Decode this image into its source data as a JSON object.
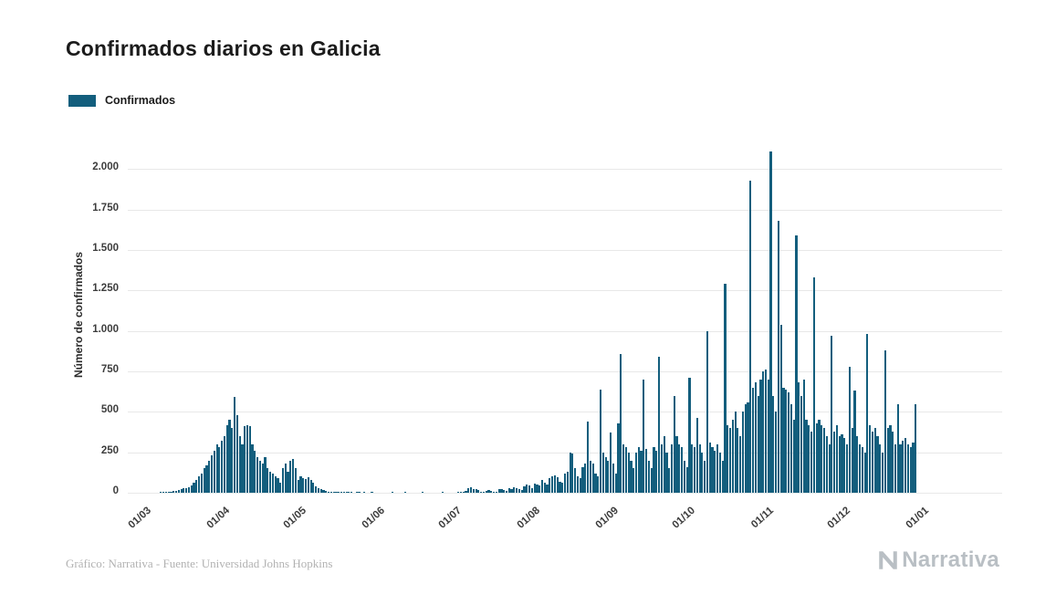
{
  "page": {
    "title": "Confirmados diarios en Galicia"
  },
  "legend": {
    "items": [
      {
        "label": "Confirmados",
        "color": "#135e7d"
      }
    ]
  },
  "footer": {
    "credit": "Gráfico: Narrativa - Fuente: Universidad Johns Hopkins",
    "brand": "Narrativa"
  },
  "chart_data": {
    "type": "bar",
    "title": "Confirmados diarios en Galicia",
    "xlabel": "",
    "ylabel": "Número de confirmados",
    "series_name": "Confirmados",
    "bar_color": "#135e7d",
    "grid": true,
    "legend_position": "top-left",
    "ylim": [
      0,
      2200
    ],
    "x_interval": "daily",
    "x_domain_days": 306,
    "y_ticks": [
      {
        "value": 0,
        "label": "0"
      },
      {
        "value": 250,
        "label": "250"
      },
      {
        "value": 500,
        "label": "500"
      },
      {
        "value": 750,
        "label": "750"
      },
      {
        "value": 1000,
        "label": "1.000"
      },
      {
        "value": 1250,
        "label": "1.250"
      },
      {
        "value": 1500,
        "label": "1.500"
      },
      {
        "value": 1750,
        "label": "1.750"
      },
      {
        "value": 2000,
        "label": "2.000"
      }
    ],
    "x_ticks": [
      {
        "day": 0,
        "label": "01/03"
      },
      {
        "day": 31,
        "label": "01/04"
      },
      {
        "day": 61,
        "label": "01/05"
      },
      {
        "day": 92,
        "label": "01/06"
      },
      {
        "day": 122,
        "label": "01/07"
      },
      {
        "day": 153,
        "label": "01/08"
      },
      {
        "day": 184,
        "label": "01/09"
      },
      {
        "day": 214,
        "label": "01/10"
      },
      {
        "day": 245,
        "label": "01/11"
      },
      {
        "day": 275,
        "label": "01/12"
      },
      {
        "day": 306,
        "label": "01/01"
      }
    ],
    "values": [
      0,
      0,
      0,
      2,
      3,
      4,
      6,
      8,
      10,
      14,
      18,
      25,
      30,
      28,
      35,
      45,
      60,
      80,
      100,
      120,
      150,
      170,
      200,
      230,
      260,
      300,
      280,
      320,
      350,
      420,
      450,
      400,
      590,
      480,
      350,
      300,
      410,
      420,
      410,
      300,
      260,
      220,
      200,
      180,
      220,
      150,
      130,
      120,
      100,
      90,
      60,
      150,
      180,
      130,
      200,
      210,
      150,
      80,
      100,
      90,
      85,
      95,
      80,
      60,
      40,
      30,
      20,
      15,
      10,
      8,
      5,
      4,
      3,
      2,
      3,
      2,
      1,
      2,
      1,
      0,
      2,
      1,
      0,
      1,
      0,
      0,
      1,
      0,
      0,
      0,
      0,
      0,
      0,
      0,
      1,
      0,
      0,
      0,
      0,
      1,
      0,
      0,
      0,
      0,
      0,
      0,
      1,
      0,
      0,
      0,
      0,
      0,
      0,
      0,
      1,
      0,
      0,
      0,
      0,
      0,
      2,
      1,
      5,
      10,
      30,
      35,
      25,
      20,
      15,
      8,
      5,
      10,
      15,
      10,
      5,
      8,
      20,
      25,
      15,
      10,
      30,
      25,
      35,
      30,
      20,
      15,
      40,
      50,
      45,
      30,
      55,
      50,
      45,
      80,
      60,
      50,
      90,
      100,
      110,
      95,
      70,
      60,
      120,
      130,
      250,
      240,
      150,
      100,
      90,
      160,
      180,
      440,
      200,
      180,
      120,
      100,
      640,
      250,
      220,
      200,
      370,
      180,
      120,
      430,
      860,
      300,
      280,
      250,
      200,
      150,
      250,
      280,
      260,
      700,
      270,
      200,
      150,
      280,
      260,
      840,
      300,
      350,
      250,
      150,
      300,
      600,
      350,
      300,
      280,
      200,
      160,
      710,
      300,
      280,
      460,
      300,
      250,
      200,
      1000,
      310,
      280,
      260,
      300,
      250,
      200,
      1290,
      420,
      400,
      450,
      500,
      400,
      350,
      500,
      550,
      560,
      1930,
      650,
      680,
      600,
      700,
      750,
      760,
      700,
      2110,
      600,
      500,
      1680,
      1040,
      650,
      640,
      620,
      550,
      450,
      1590,
      680,
      600,
      700,
      450,
      420,
      380,
      1330,
      430,
      450,
      420,
      400,
      350,
      300,
      970,
      380,
      420,
      350,
      360,
      340,
      300,
      780,
      400,
      630,
      350,
      300,
      280,
      250,
      980,
      420,
      380,
      400,
      350,
      300,
      250,
      880,
      400,
      420,
      380,
      300,
      550,
      300,
      320,
      340,
      300,
      280,
      310,
      550
    ]
  }
}
